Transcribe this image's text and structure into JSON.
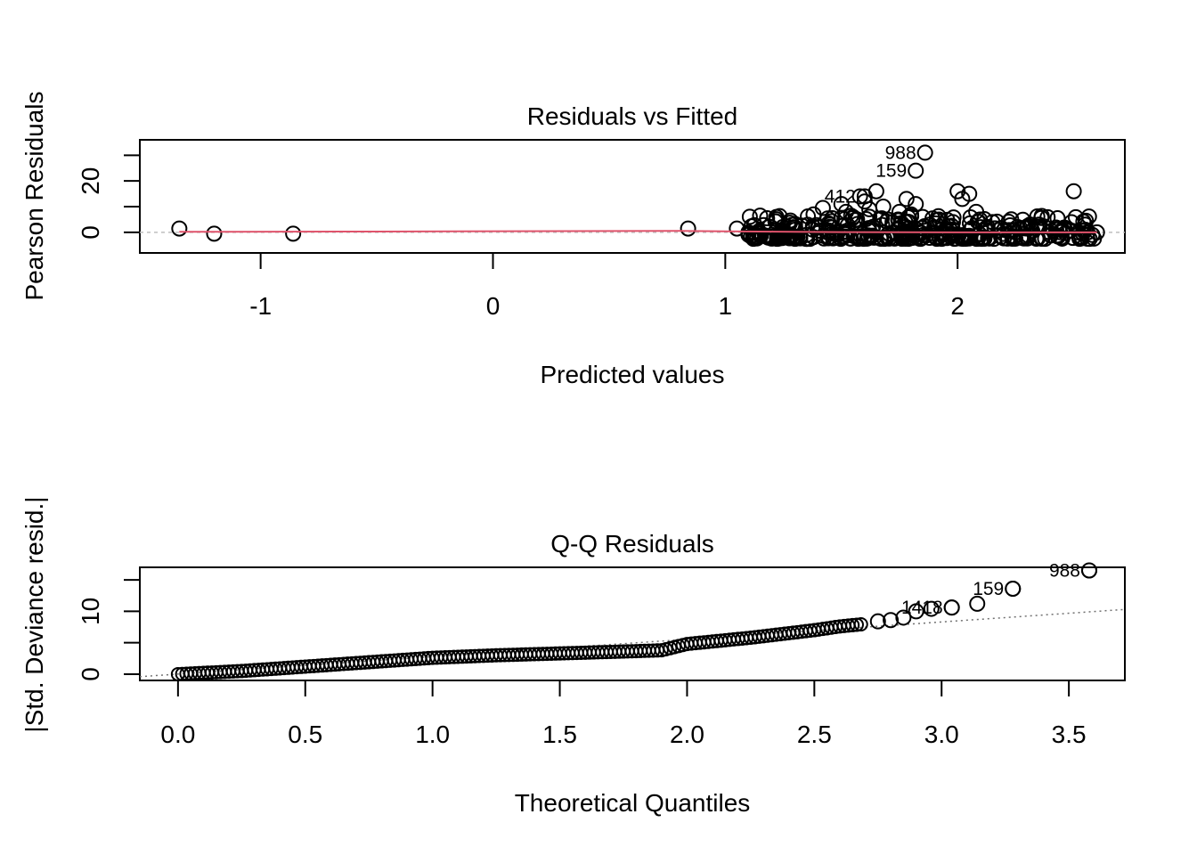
{
  "chart_data": [
    {
      "type": "scatter",
      "title": "Residuals vs Fitted",
      "xlabel": "Predicted values",
      "ylabel": "Pearson Residuals",
      "xlim": [
        -1.52,
        2.72
      ],
      "ylim": [
        -8,
        36
      ],
      "x_ticks": [
        -1,
        0,
        1,
        2
      ],
      "x_tick_labels": [
        "-1",
        "0",
        "1",
        "2"
      ],
      "y_ticks": [
        0,
        10,
        20,
        30
      ],
      "y_tick_labels": [
        "0",
        "",
        "20",
        ""
      ],
      "reference_line": {
        "y": 0,
        "style": "dashed",
        "color": "#bebebe"
      },
      "smooth_line": {
        "color": "#df536b",
        "points": [
          [
            -1.35,
            0.2
          ],
          [
            -0.5,
            0.3
          ],
          [
            0.8,
            0.6
          ],
          [
            1.0,
            0.4
          ],
          [
            1.5,
            0.1
          ],
          [
            2.0,
            0.0
          ],
          [
            2.6,
            0.0
          ]
        ]
      },
      "points": [
        [
          -1.35,
          1.5
        ],
        [
          -1.2,
          -0.5
        ],
        [
          -0.86,
          -0.5
        ],
        [
          0.84,
          1.5
        ],
        [
          1.05,
          1.5
        ],
        [
          1.1,
          0
        ],
        [
          1.12,
          -1
        ],
        [
          1.15,
          6.5
        ],
        [
          1.18,
          5.5
        ],
        [
          1.22,
          6
        ],
        [
          1.25,
          0
        ],
        [
          1.3,
          1
        ],
        [
          1.35,
          -1
        ],
        [
          1.38,
          7
        ],
        [
          1.4,
          2
        ],
        [
          1.42,
          9.5
        ],
        [
          1.45,
          3
        ],
        [
          1.48,
          0
        ],
        [
          1.5,
          11
        ],
        [
          1.52,
          8
        ],
        [
          1.55,
          6
        ],
        [
          1.58,
          14
        ],
        [
          1.6,
          12
        ],
        [
          1.62,
          9
        ],
        [
          1.65,
          16
        ],
        [
          1.68,
          10
        ],
        [
          1.7,
          5
        ],
        [
          1.72,
          4
        ],
        [
          1.75,
          8
        ],
        [
          1.78,
          13
        ],
        [
          1.8,
          7
        ],
        [
          1.82,
          11
        ],
        [
          1.85,
          6
        ],
        [
          1.88,
          3
        ],
        [
          1.9,
          2
        ],
        [
          1.92,
          5
        ],
        [
          1.95,
          1
        ],
        [
          1.98,
          4
        ],
        [
          2.0,
          16
        ],
        [
          2.02,
          13
        ],
        [
          2.05,
          15
        ],
        [
          2.08,
          8
        ],
        [
          2.1,
          2
        ],
        [
          2.15,
          4
        ],
        [
          2.2,
          1
        ],
        [
          2.25,
          0
        ],
        [
          2.3,
          2
        ],
        [
          2.35,
          3
        ],
        [
          2.4,
          -1
        ],
        [
          2.45,
          1
        ],
        [
          2.5,
          16
        ],
        [
          2.52,
          0
        ],
        [
          2.55,
          1
        ],
        [
          2.58,
          -1
        ],
        [
          2.6,
          0
        ]
      ],
      "labeled_points": [
        {
          "id": "988",
          "x": 1.86,
          "y": 31
        },
        {
          "id": "159",
          "x": 1.82,
          "y": 24
        },
        {
          "id": "412",
          "x": 1.6,
          "y": 14
        }
      ]
    },
    {
      "type": "scatter",
      "title": "Q-Q Residuals",
      "xlabel": "Theoretical Quantiles",
      "ylabel": "|Std. Deviance resid.|",
      "xlim": [
        -0.15,
        3.72
      ],
      "ylim": [
        -1,
        17
      ],
      "x_ticks": [
        0,
        0.5,
        1,
        1.5,
        2,
        2.5,
        3,
        3.5
      ],
      "x_tick_labels": [
        "0.0",
        "0.5",
        "1.0",
        "1.5",
        "2.0",
        "2.5",
        "3.0",
        "3.5"
      ],
      "y_ticks": [
        0,
        5,
        10,
        15
      ],
      "y_tick_labels": [
        "0",
        "",
        "10",
        ""
      ],
      "reference_line": {
        "style": "dotted",
        "color": "#707070",
        "x": [
          -0.15,
          3.72
        ],
        "y": [
          -0.4,
          10.3
        ]
      },
      "qq_curve": [
        [
          0,
          0
        ],
        [
          0.25,
          0.5
        ],
        [
          0.5,
          1.2
        ],
        [
          0.75,
          1.9
        ],
        [
          1.0,
          2.6
        ],
        [
          1.25,
          3.0
        ],
        [
          1.5,
          3.3
        ],
        [
          1.75,
          3.6
        ],
        [
          1.9,
          3.8
        ],
        [
          2.0,
          4.8
        ],
        [
          2.25,
          5.8
        ],
        [
          2.5,
          7.0
        ],
        [
          2.6,
          7.6
        ],
        [
          2.7,
          8.0
        ]
      ],
      "points": [
        [
          2.75,
          8.4
        ],
        [
          2.8,
          8.6
        ],
        [
          2.85,
          9.0
        ],
        [
          2.9,
          10.0
        ],
        [
          2.96,
          10.4
        ],
        [
          3.04,
          10.6
        ],
        [
          3.14,
          11.2
        ],
        [
          3.28,
          13.6
        ],
        [
          3.58,
          16.5
        ]
      ],
      "labeled_points": [
        {
          "id": "988",
          "x": 3.58,
          "y": 16.5
        },
        {
          "id": "159",
          "x": 3.28,
          "y": 13.6
        },
        {
          "id": "1418",
          "x": 3.04,
          "y": 10.6
        }
      ]
    }
  ]
}
